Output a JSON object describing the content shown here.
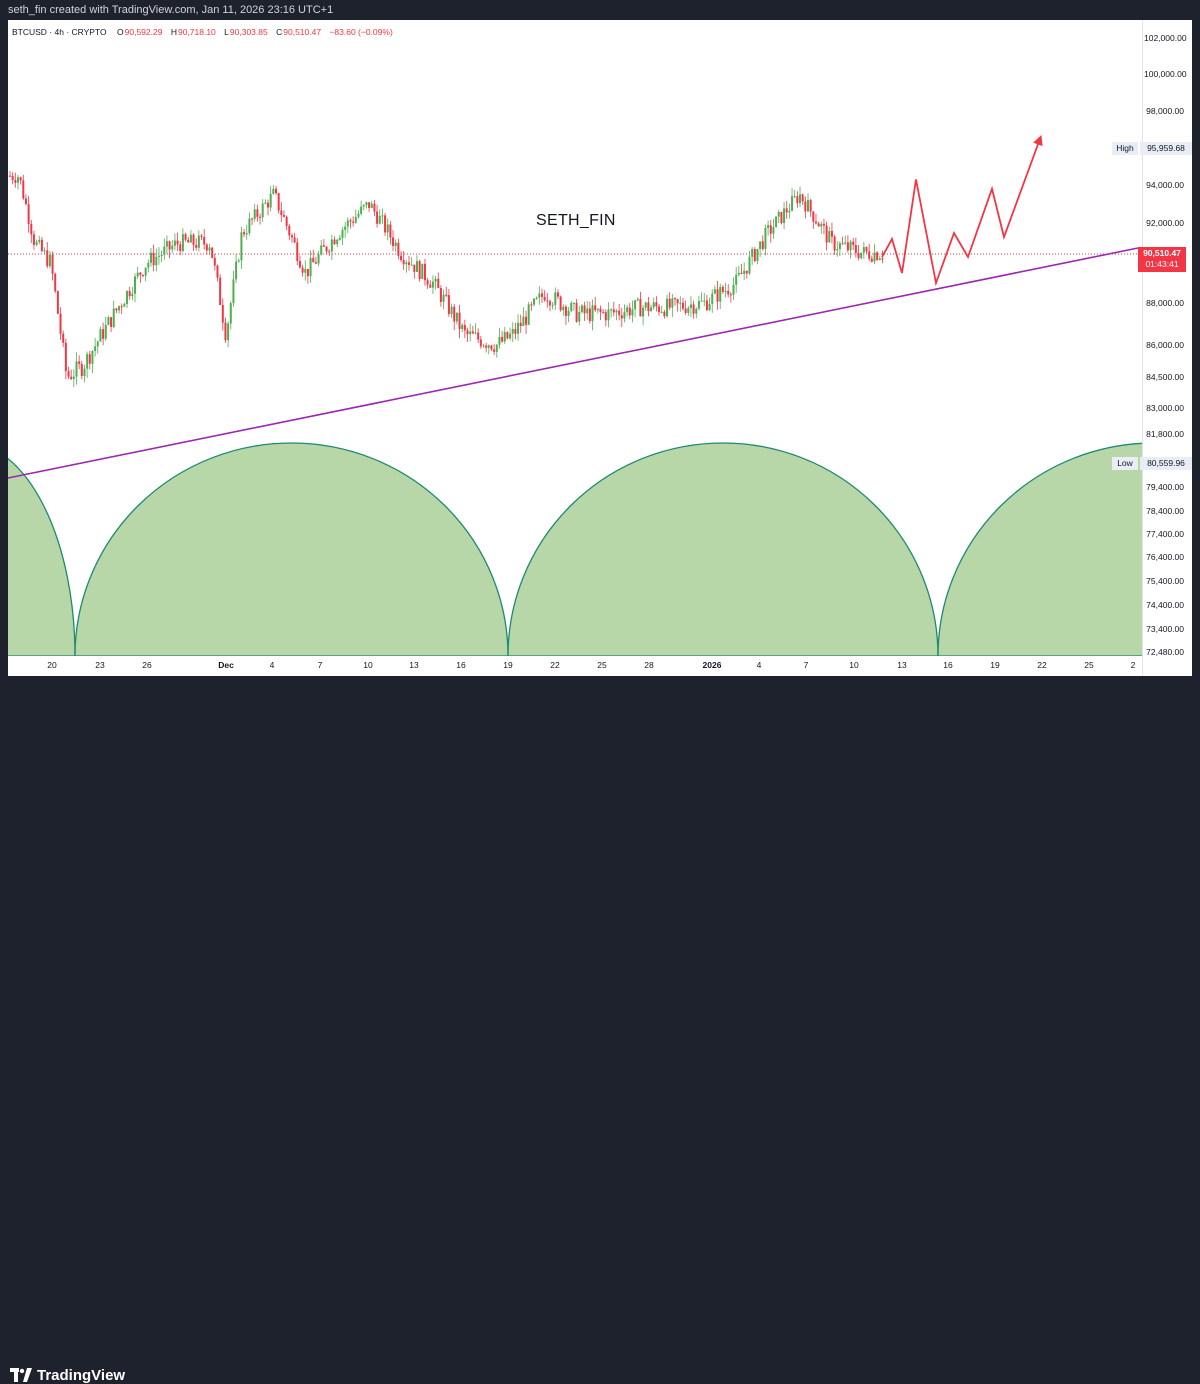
{
  "header": {
    "caption": "seth_fin created with TradingView.com, Jan 11, 2026 23:16 UTC+1"
  },
  "legend": {
    "symbol": "BTCUSD · 4h · CRYPTO",
    "open_label": "O",
    "open": "90,592.29",
    "high_label": "H",
    "high": "90,718.10",
    "low_label": "L",
    "low": "90,303.85",
    "close_label": "C",
    "close": "90,510.47",
    "change": "−83.60 (−0.09%)"
  },
  "watermark": "SETH_FIN",
  "price_axis": {
    "ticks": [
      "102,000.00",
      "100,000.00",
      "98,000.00",
      "94,000.00",
      "92,000.00",
      "88,000.00",
      "86,000.00",
      "84,500.00",
      "83,000.00",
      "81,800.00",
      "79,400.00",
      "78,400.00",
      "77,400.00",
      "76,400.00",
      "75,400.00",
      "74,400.00",
      "73,400.00",
      "72,480.00"
    ]
  },
  "time_axis": {
    "ticks": [
      "20",
      "23",
      "26",
      "Dec",
      "4",
      "7",
      "10",
      "13",
      "16",
      "19",
      "22",
      "25",
      "28",
      "2026",
      "4",
      "7",
      "10",
      "13",
      "16",
      "19",
      "22",
      "25",
      "2"
    ]
  },
  "markers": {
    "high_label": "High",
    "high_value": "95,959.68",
    "low_label": "Low",
    "low_value": "80,559.96",
    "last_price": "90,510.47",
    "countdown": "01:43:41"
  },
  "colors": {
    "up": "#26a69a",
    "candle_up": "#4caf50",
    "down": "#f23645",
    "trendline": "#9c27b0",
    "projection": "#f23645",
    "arch_fill": "#b7d7a8",
    "arch_stroke": "#1e8a6e"
  },
  "footer": {
    "brand": "TradingView"
  },
  "chart_data": {
    "type": "line",
    "symbol": "BTCUSD",
    "interval": "4h",
    "ohlc_last": {
      "open": 90592.29,
      "high": 90718.1,
      "low": 90303.85,
      "close": 90510.47,
      "change": -83.6,
      "change_pct": -0.09
    },
    "visible_high": 95959.68,
    "visible_low": 80559.96,
    "ylim": [
      72000,
      103000
    ],
    "close_path": [
      {
        "x": "Nov 18",
        "y": 94500
      },
      {
        "x": "Nov 19",
        "y": 91000
      },
      {
        "x": "Nov 20",
        "y": 90000
      },
      {
        "x": "Nov 21",
        "y": 84500
      },
      {
        "x": "Nov 22",
        "y": 85000
      },
      {
        "x": "Nov 24",
        "y": 87500
      },
      {
        "x": "Nov 26",
        "y": 90000
      },
      {
        "x": "Nov 28",
        "y": 91000
      },
      {
        "x": "Nov 30",
        "y": 91000
      },
      {
        "x": "Dec 1",
        "y": 86500
      },
      {
        "x": "Dec 2",
        "y": 91500
      },
      {
        "x": "Dec 4",
        "y": 93500
      },
      {
        "x": "Dec 6",
        "y": 89500
      },
      {
        "x": "Dec 8",
        "y": 91500
      },
      {
        "x": "Dec 10",
        "y": 93000
      },
      {
        "x": "Dec 12",
        "y": 90500
      },
      {
        "x": "Dec 14",
        "y": 89000
      },
      {
        "x": "Dec 16",
        "y": 86500
      },
      {
        "x": "Dec 18",
        "y": 86000
      },
      {
        "x": "Dec 19",
        "y": 86500
      },
      {
        "x": "Dec 21",
        "y": 88500
      },
      {
        "x": "Dec 23",
        "y": 87500
      },
      {
        "x": "Dec 25",
        "y": 87500
      },
      {
        "x": "Dec 27",
        "y": 87800
      },
      {
        "x": "Dec 29",
        "y": 87800
      },
      {
        "x": "Dec 31",
        "y": 88000
      },
      {
        "x": "Jan 2",
        "y": 89000
      },
      {
        "x": "Jan 4",
        "y": 91500
      },
      {
        "x": "Jan 6",
        "y": 93500
      },
      {
        "x": "Jan 8",
        "y": 91000
      },
      {
        "x": "Jan 10",
        "y": 90500
      },
      {
        "x": "Jan 11",
        "y": 90510
      }
    ],
    "trendline": [
      {
        "x": "Nov 17",
        "y": 80300
      },
      {
        "x": "Jan 24",
        "y": 90800
      }
    ],
    "projection": [
      {
        "x": "Jan 11",
        "y": 90300
      },
      {
        "x": "Jan 12",
        "y": 91200
      },
      {
        "x": "Jan 13",
        "y": 89500
      },
      {
        "x": "Jan 14",
        "y": 94300
      },
      {
        "x": "Jan 15",
        "y": 89000
      },
      {
        "x": "Jan 16",
        "y": 91500
      },
      {
        "x": "Jan 17",
        "y": 90300
      },
      {
        "x": "Jan 19",
        "y": 93800
      },
      {
        "x": "Jan 20",
        "y": 91300
      },
      {
        "x": "Jan 22",
        "y": 96500
      }
    ]
  }
}
